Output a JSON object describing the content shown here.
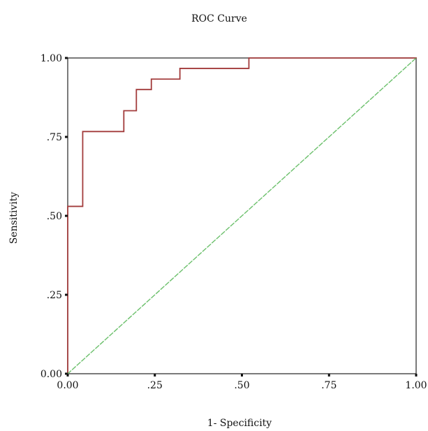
{
  "chart_data": {
    "type": "line",
    "title": "ROC Curve",
    "xlabel": "1- Specificity",
    "ylabel": "Sensitivity",
    "xlim": [
      0,
      1
    ],
    "ylim": [
      0,
      1
    ],
    "x_ticks": [
      {
        "value": 0.0,
        "label": "0.00"
      },
      {
        "value": 0.25,
        "label": ".25"
      },
      {
        "value": 0.5,
        "label": ".50"
      },
      {
        "value": 0.75,
        "label": ".75"
      },
      {
        "value": 1.0,
        "label": "1.00"
      }
    ],
    "y_ticks": [
      {
        "value": 0.0,
        "label": "0.00"
      },
      {
        "value": 0.25,
        "label": ".25"
      },
      {
        "value": 0.5,
        "label": ".50"
      },
      {
        "value": 0.75,
        "label": ".75"
      },
      {
        "value": 1.0,
        "label": "1.00"
      }
    ],
    "grid": false,
    "legend": "none",
    "series": [
      {
        "color": "#a23b3b",
        "style": "step",
        "x": [
          0.0,
          0.0,
          0.043,
          0.043,
          0.161,
          0.161,
          0.197,
          0.197,
          0.24,
          0.24,
          0.322,
          0.322,
          0.52,
          0.52,
          1.0
        ],
        "y": [
          0.0,
          0.53,
          0.53,
          0.767,
          0.767,
          0.833,
          0.833,
          0.9,
          0.9,
          0.933,
          0.933,
          0.967,
          0.967,
          1.0,
          1.0
        ]
      },
      {
        "color": "#6cc06c",
        "style": "dashed",
        "x": [
          0.0,
          1.0
        ],
        "y": [
          0.0,
          1.0
        ]
      }
    ]
  }
}
